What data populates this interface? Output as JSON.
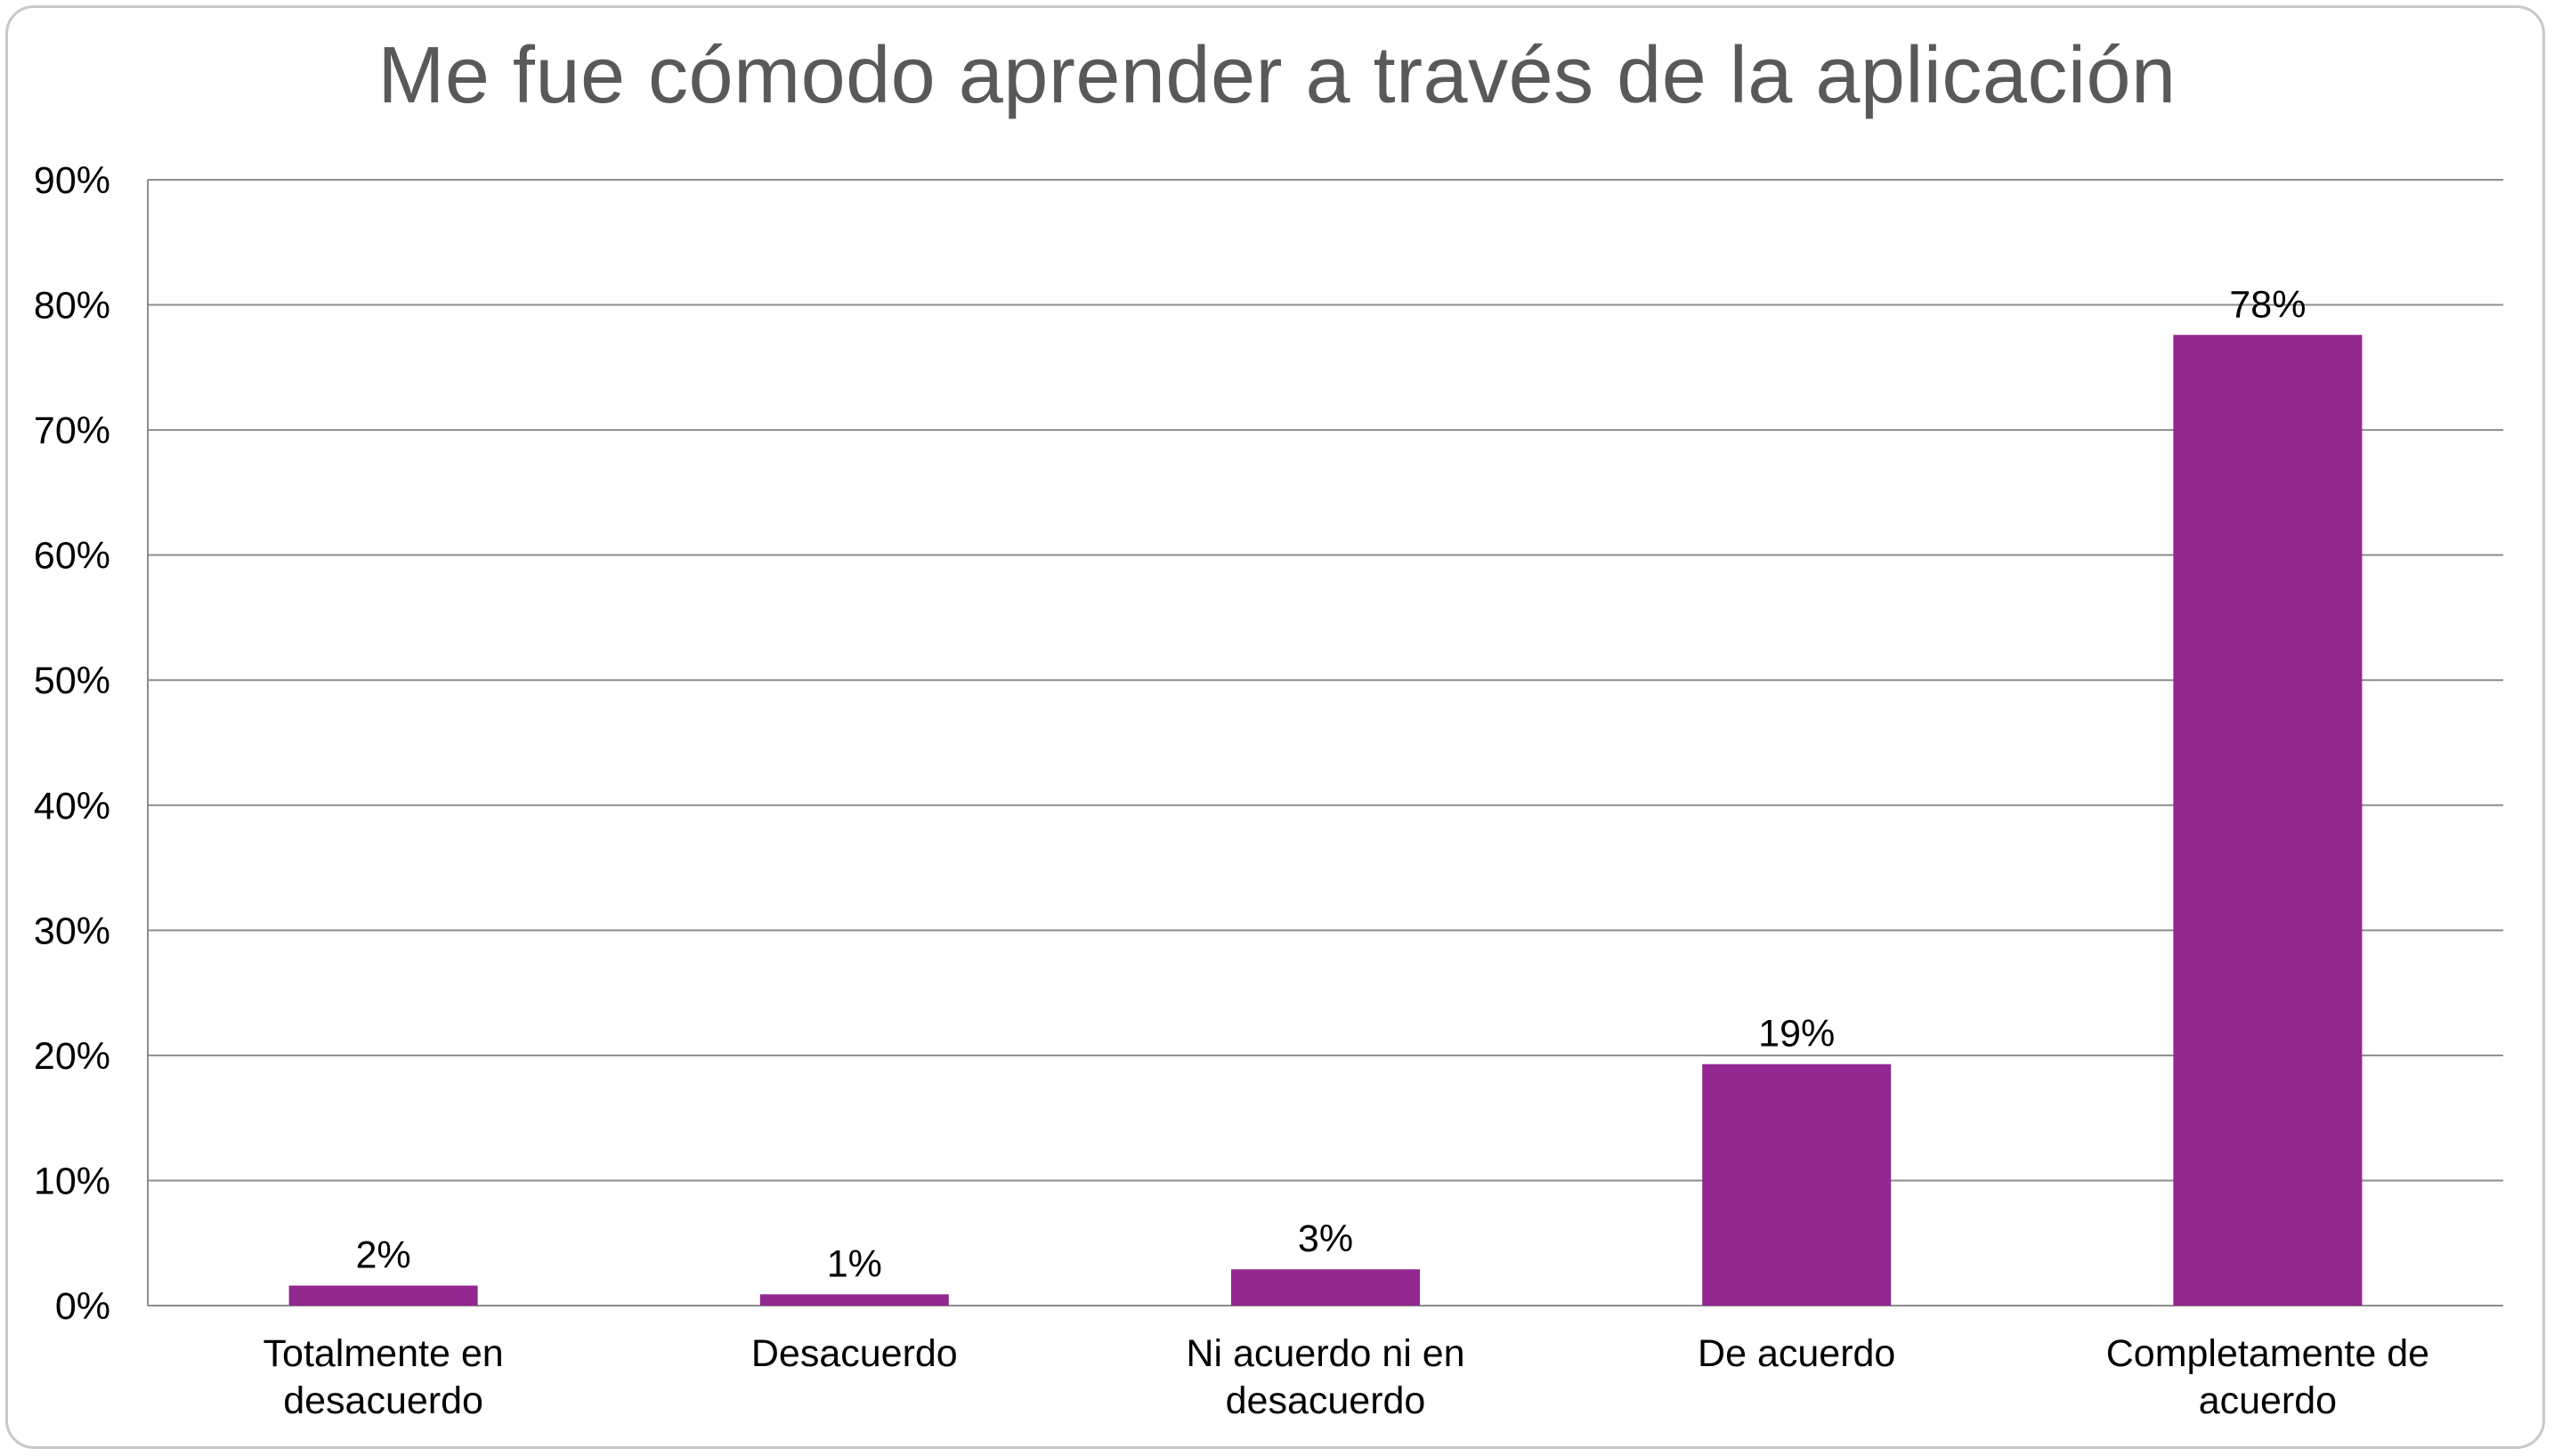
{
  "colors": {
    "bar": "#92278f",
    "grid": "#8c8c8c",
    "title": "#595959",
    "frame": "#c8c8c8"
  },
  "chart_data": {
    "type": "bar",
    "title": "Me fue cómodo aprender a través de la aplicación",
    "xlabel": "",
    "ylabel": "",
    "ylim": [
      0,
      0.9
    ],
    "grid": true,
    "legend": "none",
    "y_ticks": [
      "0%",
      "10%",
      "20%",
      "30%",
      "40%",
      "50%",
      "60%",
      "70%",
      "80%",
      "90%"
    ],
    "categories": [
      [
        "Totalmente en",
        "desacuerdo"
      ],
      [
        "Desacuerdo"
      ],
      [
        "Ni acuerdo ni en",
        "desacuerdo"
      ],
      [
        "De acuerdo"
      ],
      [
        "Completamente de",
        "acuerdo"
      ]
    ],
    "values": [
      0.016,
      0.009,
      0.029,
      0.193,
      0.776
    ],
    "data_labels": [
      "2%",
      "1%",
      "3%",
      "19%",
      "78%"
    ]
  }
}
